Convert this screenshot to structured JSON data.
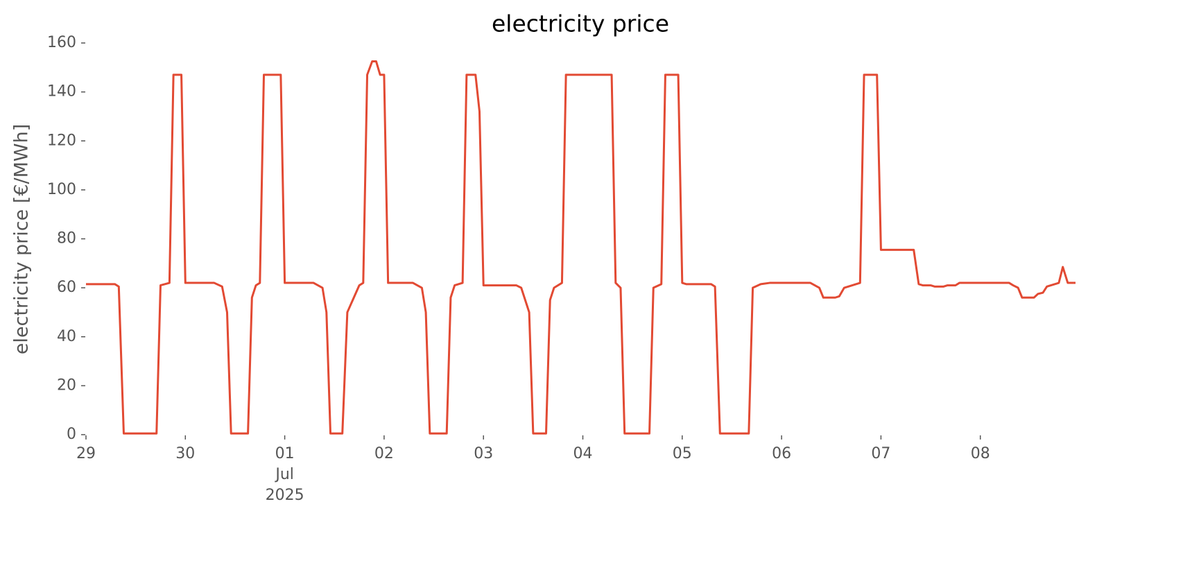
{
  "chart_data": {
    "type": "line",
    "title": "electricity price",
    "ylabel": "electricity price [€/MWh]",
    "color": "#e24a33",
    "x": [
      0,
      0.29,
      0.33,
      0.38,
      0.71,
      0.75,
      0.84,
      0.88,
      0.96,
      1.0,
      1.29,
      1.37,
      1.42,
      1.46,
      1.63,
      1.67,
      1.71,
      1.75,
      1.79,
      1.96,
      2.0,
      2.29,
      2.38,
      2.42,
      2.46,
      2.58,
      2.63,
      2.75,
      2.79,
      2.83,
      2.88,
      2.92,
      2.96,
      3.0,
      3.04,
      3.29,
      3.38,
      3.42,
      3.46,
      3.63,
      3.67,
      3.71,
      3.79,
      3.83,
      3.92,
      3.96,
      4.0,
      4.33,
      4.38,
      4.46,
      4.5,
      4.63,
      4.67,
      4.71,
      4.79,
      4.83,
      5.29,
      5.33,
      5.38,
      5.42,
      5.67,
      5.71,
      5.79,
      5.83,
      5.96,
      6.0,
      6.04,
      6.29,
      6.33,
      6.38,
      6.67,
      6.71,
      6.79,
      6.88,
      7.29,
      7.38,
      7.42,
      7.54,
      7.58,
      7.63,
      7.79,
      7.83,
      7.96,
      8.0,
      8.33,
      8.38,
      8.42,
      8.5,
      8.54,
      8.63,
      8.67,
      8.75,
      8.79,
      9.29,
      9.33,
      9.38,
      9.42,
      9.54,
      9.58,
      9.63,
      9.67,
      9.79,
      9.83,
      9.88,
      9.958
    ],
    "values": [
      61.5,
      61.5,
      60.5,
      0.5,
      0.5,
      61,
      62,
      147,
      147,
      62,
      62,
      60.5,
      50,
      0.5,
      0.5,
      56,
      61,
      62,
      147,
      147,
      62,
      62,
      60,
      50,
      0.5,
      0.5,
      50,
      61,
      62,
      147,
      152.5,
      152.5,
      147,
      147,
      62,
      62,
      60,
      50,
      0.5,
      0.5,
      56,
      61,
      62,
      147,
      147,
      132,
      61,
      61,
      60,
      50,
      0.5,
      0.5,
      55,
      60,
      62,
      147,
      147,
      62,
      60,
      0.5,
      0.5,
      60,
      61.5,
      147,
      147,
      62,
      61.5,
      61.5,
      60.5,
      0.5,
      0.5,
      60,
      61.5,
      62,
      62,
      60,
      56,
      56,
      56.5,
      60,
      62,
      147,
      147,
      75.5,
      75.5,
      61.5,
      61,
      61,
      60.5,
      60.5,
      61,
      61,
      62,
      62,
      61,
      60,
      56,
      56,
      57.5,
      58,
      60.5,
      62,
      68.5,
      62,
      62
    ],
    "xlim": [
      0,
      9.958
    ],
    "xticks": [
      {
        "value": 0,
        "label": "29"
      },
      {
        "value": 1,
        "label": "30"
      },
      {
        "value": 2,
        "label": "01\nJul\n2025"
      },
      {
        "value": 3,
        "label": "02"
      },
      {
        "value": 4,
        "label": "03"
      },
      {
        "value": 5,
        "label": "04"
      },
      {
        "value": 6,
        "label": "05"
      },
      {
        "value": 7,
        "label": "06"
      },
      {
        "value": 8,
        "label": "07"
      },
      {
        "value": 9,
        "label": "08"
      }
    ],
    "ylim": [
      0,
      160
    ],
    "yticks": [
      0,
      20,
      40,
      60,
      80,
      100,
      120,
      140,
      160
    ],
    "grid": false
  }
}
